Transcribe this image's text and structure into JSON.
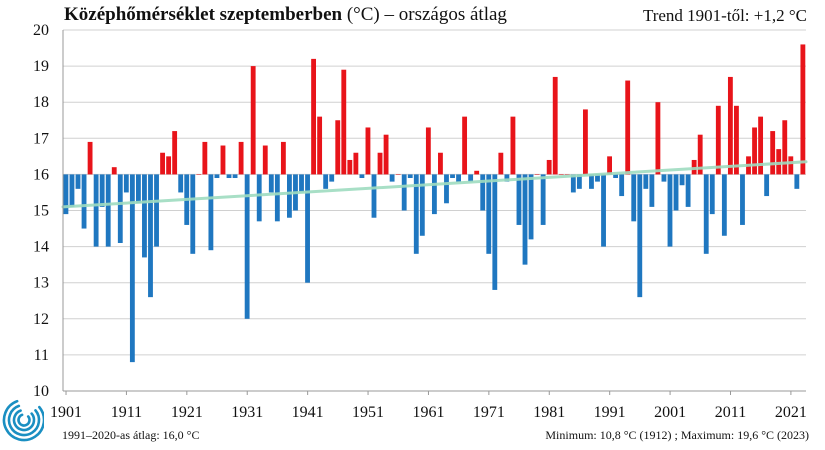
{
  "header": {
    "title_bold": "Középhőmérséklet szeptemberben",
    "title_rest": " (°C) – országos átlag",
    "trend": "Trend 1901-től: +1,2 °C"
  },
  "footer": {
    "baseline_note": "1991–2020-as átlag: 16,0 °C",
    "minmax": "Minimum:  10,8 °C (1912) ; Maximum:  19,6 °C (2023)"
  },
  "colors": {
    "above": "#e8141a",
    "below": "#1f77c0",
    "trend": "#9fdcc0",
    "grid": "#d0d0d0",
    "logo": "#1a8fc2"
  },
  "chart_data": {
    "type": "bar",
    "baseline": 16.0,
    "ylim": [
      10,
      20
    ],
    "yticks": [
      "10",
      "11",
      "12",
      "13",
      "14",
      "15",
      "16",
      "17",
      "18",
      "19",
      "20"
    ],
    "xticks": [
      "1901",
      "1911",
      "1921",
      "1931",
      "1941",
      "1951",
      "1961",
      "1971",
      "1981",
      "1991",
      "2001",
      "2011",
      "2021"
    ],
    "years": [
      1901,
      2023
    ],
    "values": [
      14.9,
      15.1,
      15.6,
      14.5,
      16.9,
      14.0,
      15.1,
      14.0,
      16.2,
      14.1,
      15.5,
      10.8,
      15.2,
      13.7,
      12.6,
      14.0,
      16.6,
      16.5,
      17.2,
      15.5,
      14.6,
      13.8,
      16.0,
      16.9,
      13.9,
      15.9,
      16.8,
      15.9,
      15.9,
      16.9,
      12.0,
      19.0,
      14.7,
      16.8,
      15.5,
      14.7,
      16.9,
      14.8,
      15.0,
      15.5,
      13.0,
      19.2,
      17.6,
      15.6,
      15.8,
      17.5,
      18.9,
      16.4,
      16.6,
      15.9,
      17.3,
      14.8,
      16.6,
      17.1,
      15.8,
      16.0,
      15.0,
      15.9,
      13.8,
      14.3,
      17.3,
      14.9,
      16.6,
      15.2,
      15.9,
      15.8,
      17.6,
      15.8,
      16.1,
      15.0,
      13.8,
      12.8,
      16.6,
      15.8,
      17.6,
      14.6,
      13.5,
      14.2,
      16.0,
      14.6,
      16.4,
      18.7,
      16.0,
      16.0,
      15.5,
      15.6,
      17.8,
      15.6,
      15.8,
      14.0,
      16.5,
      15.9,
      15.4,
      18.6,
      14.7,
      12.6,
      15.6,
      15.1,
      18.0,
      15.8,
      14.0,
      15.0,
      15.7,
      15.1,
      16.4,
      17.1,
      13.8,
      14.9,
      17.9,
      14.3,
      18.7,
      17.9,
      14.6,
      16.5,
      17.3,
      17.6,
      15.4,
      17.2,
      16.7,
      17.5,
      16.5,
      15.6,
      19.6
    ],
    "trend": [
      15.1,
      16.35
    ]
  }
}
